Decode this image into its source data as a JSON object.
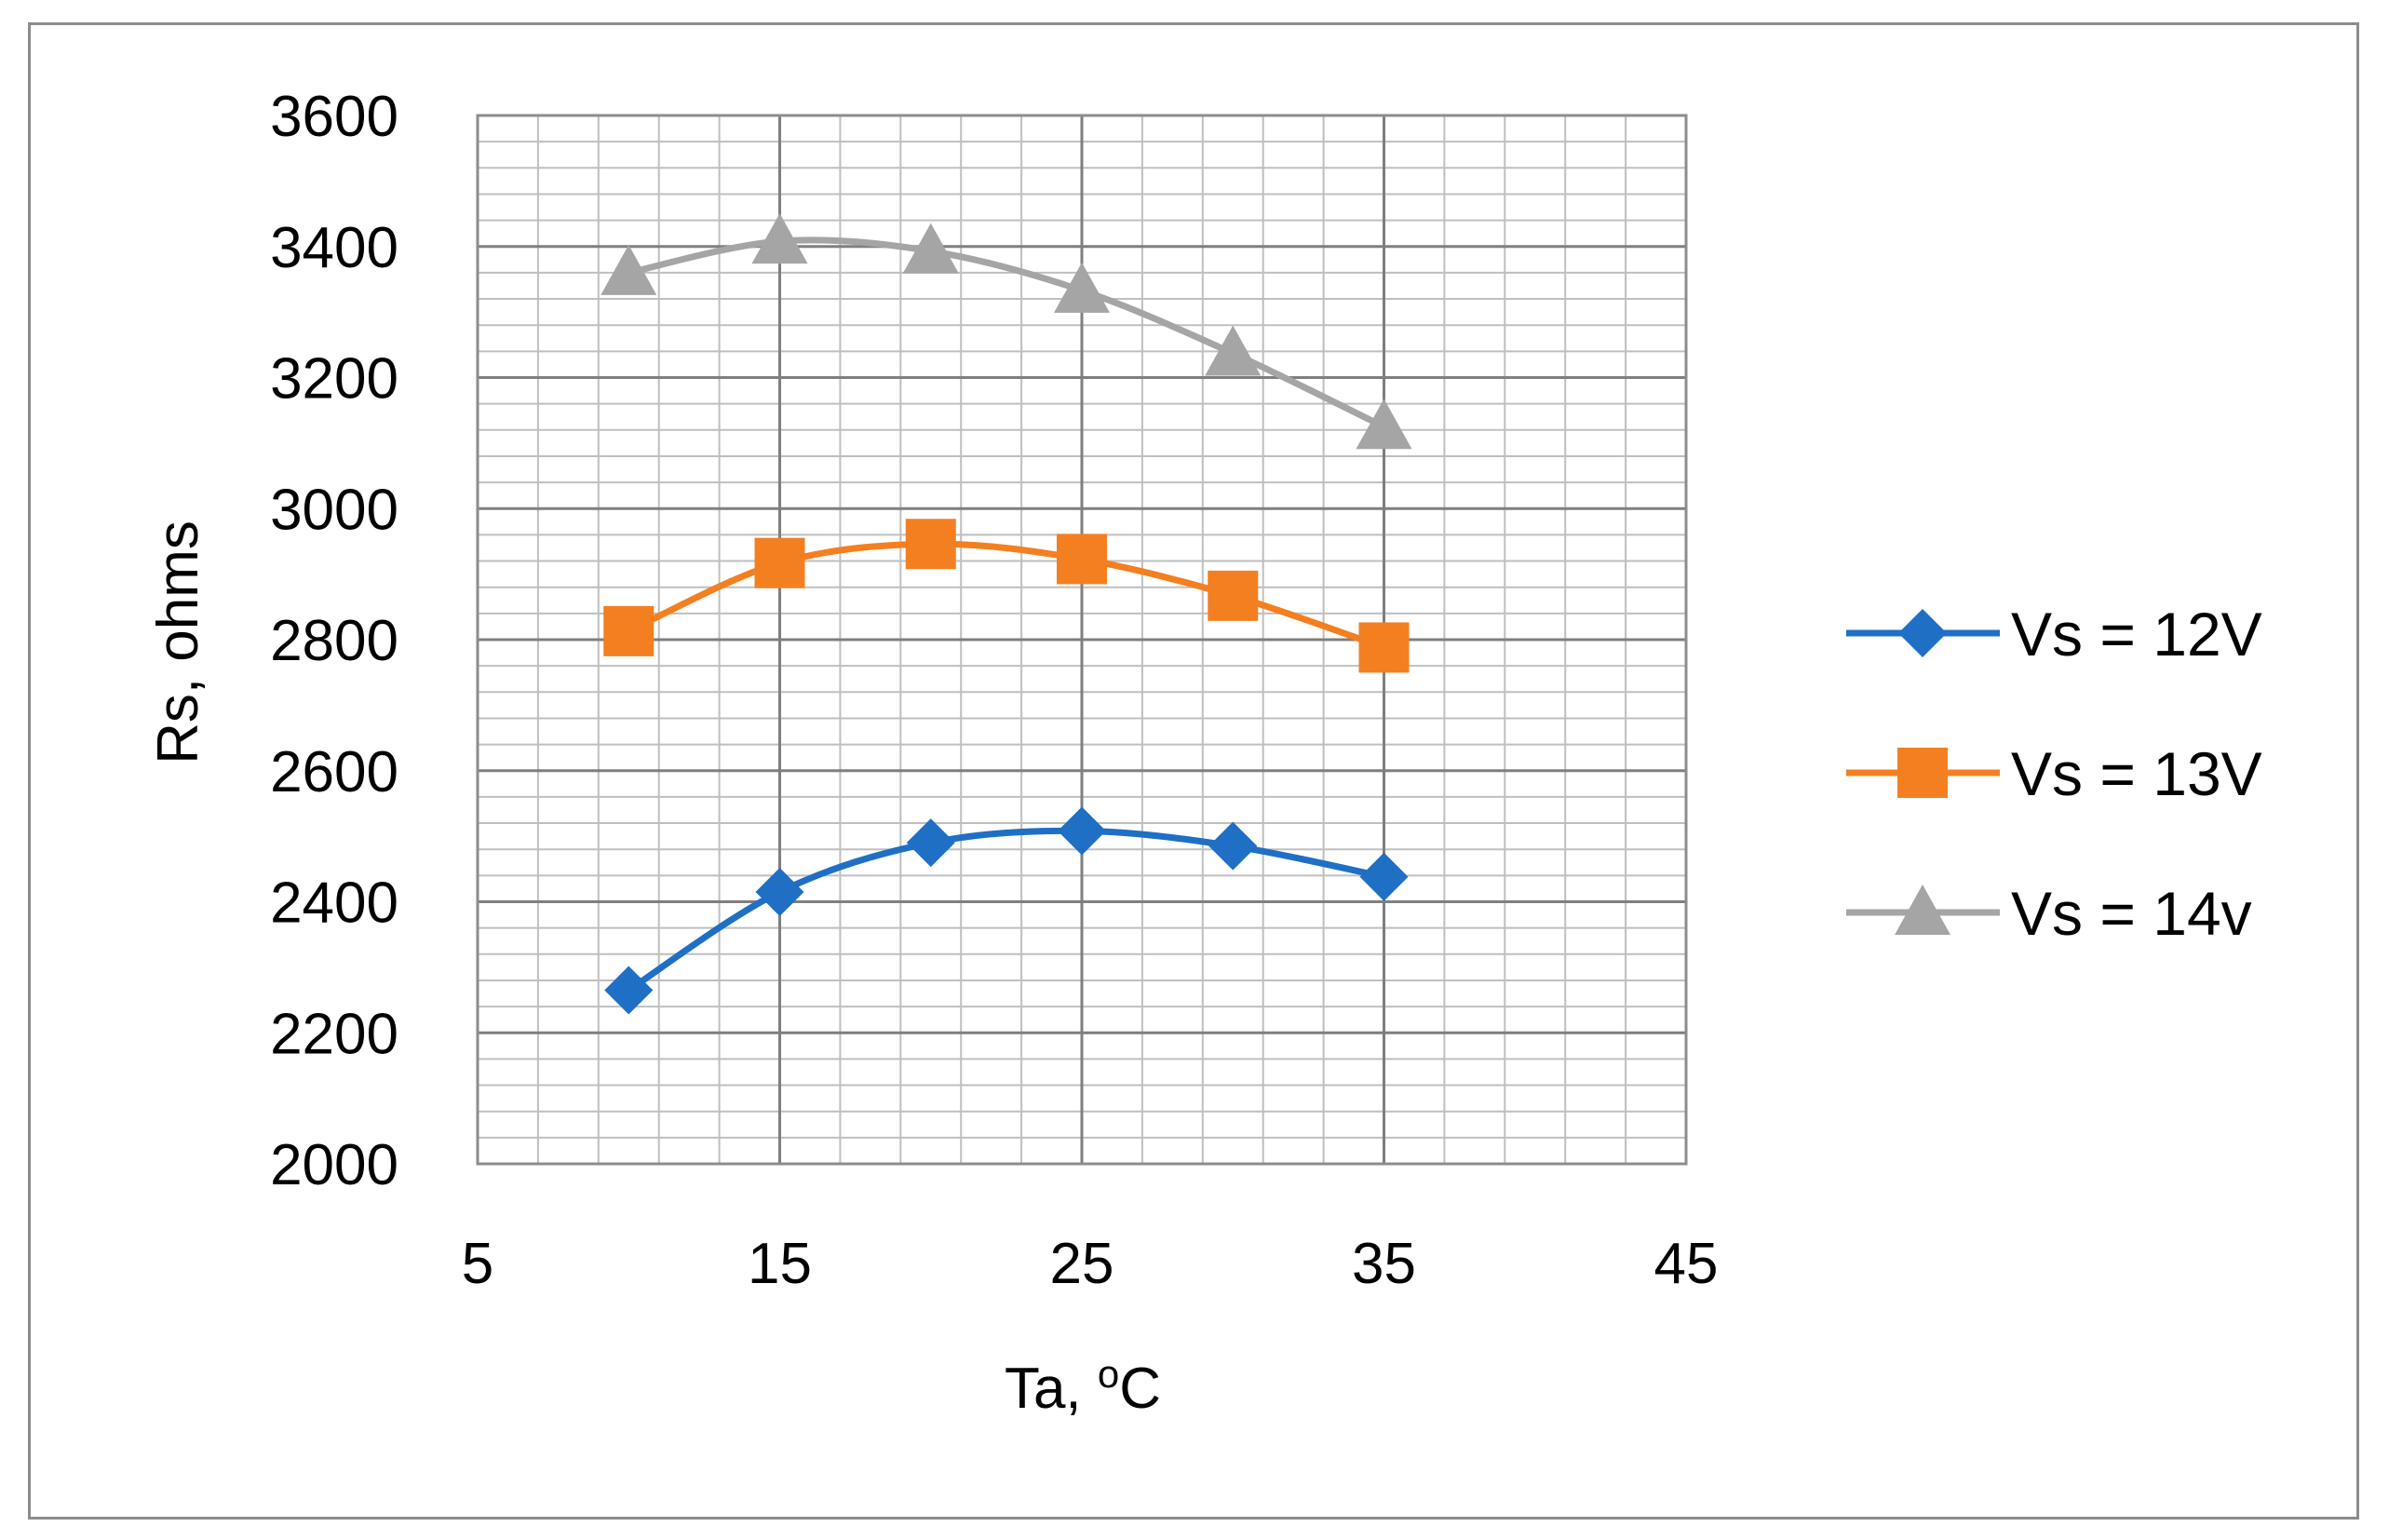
{
  "chart_data": {
    "type": "line",
    "smooth": true,
    "title": "",
    "xlabel": "Ta, ",
    "xlabel_superscript": "o",
    "xlabel_unit": "C",
    "ylabel": "Rs,  ohms",
    "xlim": [
      5,
      45
    ],
    "ylim": [
      2000,
      3600
    ],
    "x_ticks": [
      5,
      15,
      25,
      35,
      45
    ],
    "y_ticks": [
      2000,
      2200,
      2400,
      2600,
      2800,
      3000,
      3200,
      3400,
      3600
    ],
    "x_major_step": 10,
    "x_minor_step": 2,
    "y_major_step": 200,
    "y_minor_step": 40,
    "grid": true,
    "legend_position": "right",
    "x": [
      10,
      15,
      20,
      25,
      30,
      35
    ],
    "series": [
      {
        "name": "Vs = 12V",
        "marker": "diamond",
        "color": "#1f6fc5",
        "values": [
          2265,
          2415,
          2490,
          2508,
          2485,
          2438
        ]
      },
      {
        "name": "Vs = 13V",
        "marker": "square",
        "color": "#f47f20",
        "values": [
          2813,
          2917,
          2946,
          2923,
          2867,
          2788
        ]
      },
      {
        "name": "Vs = 14v",
        "marker": "triangle",
        "color": "#a5a5a5",
        "values": [
          3360,
          3408,
          3393,
          3333,
          3237,
          3125
        ]
      }
    ]
  }
}
